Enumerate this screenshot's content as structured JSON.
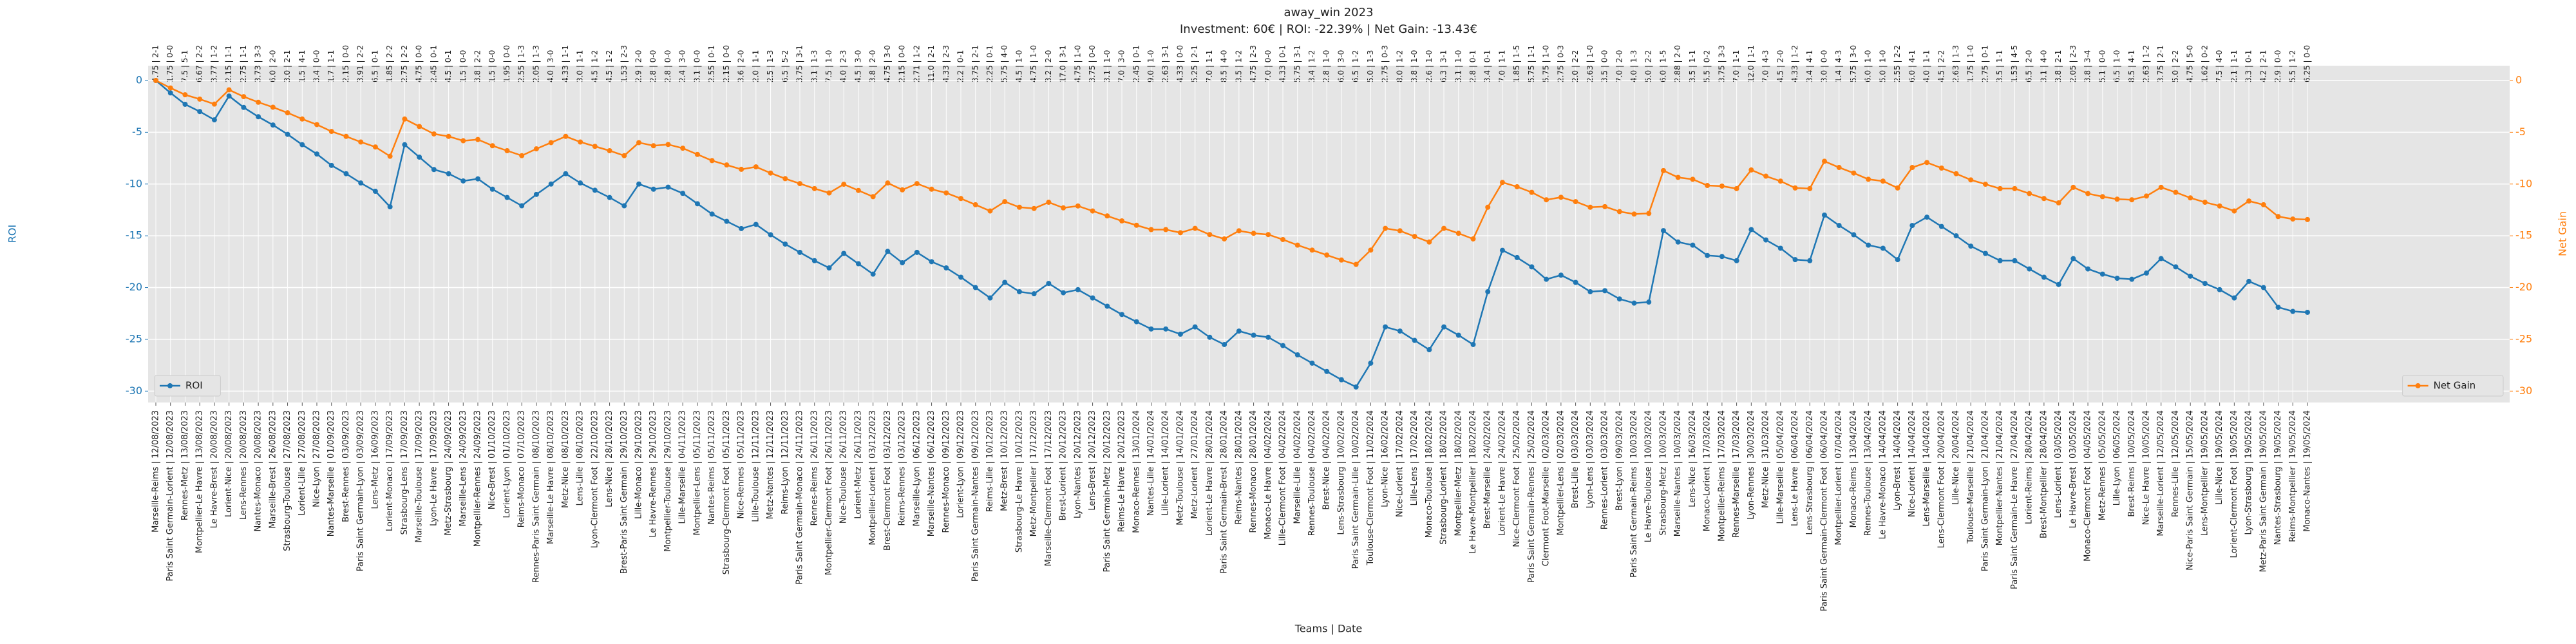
{
  "chart_data": {
    "type": "line",
    "title": "away_win 2023",
    "subtitle": "Investment: 60€ | ROI: -22.39% | Net Gain: -13.43€",
    "xlabel": "Teams | Date",
    "ylabel": "ROI",
    "y2label": "Net Gain",
    "ylim": [
      -31.1,
      1.43
    ],
    "yticks": [
      0,
      -5,
      -10,
      -15,
      -20,
      -25,
      -30
    ],
    "y2lim": [
      -31.1,
      1.43
    ],
    "y2ticks": [
      0,
      -5,
      -10,
      -15,
      -20,
      -25,
      -30
    ],
    "grid": true,
    "categories": [
      "Marseille-Reims | 12/08/2023",
      "Paris Saint Germain-Lorient | 12/08/2023",
      "Rennes-Metz | 13/08/2023",
      "Montpellier-Le Havre | 13/08/2023",
      "Le Havre-Brest | 20/08/2023",
      "Lorient-Nice | 20/08/2023",
      "Lens-Rennes | 20/08/2023",
      "Nantes-Monaco | 20/08/2023",
      "Marseille-Brest | 26/08/2023",
      "Strasbourg-Toulouse | 27/08/2023",
      "Lorient-Lille | 27/08/2023",
      "Nice-Lyon | 27/08/2023",
      "Nantes-Marseille | 01/09/2023",
      "Brest-Rennes | 03/09/2023",
      "Paris Saint Germain-Lyon | 03/09/2023",
      "Lens-Metz | 16/09/2023",
      "Lorient-Monaco | 17/09/2023",
      "Strasbourg-Lens | 17/09/2023",
      "Marseille-Toulouse | 17/09/2023",
      "Lyon-Le Havre | 17/09/2023",
      "Metz-Strasbourg | 24/09/2023",
      "Marseille-Lens | 24/09/2023",
      "Montpellier-Rennes | 24/09/2023",
      "Nice-Brest | 01/10/2023",
      "Lorient-Lyon | 01/10/2023",
      "Reims-Monaco | 07/10/2023",
      "Rennes-Paris Saint Germain | 08/10/2023",
      "Marseille-Le Havre | 08/10/2023",
      "Metz-Nice | 08/10/2023",
      "Lens-Lille | 08/10/2023",
      "Lyon-Clermont Foot | 22/10/2023",
      "Lens-Nice | 28/10/2023",
      "Brest-Paris Saint Germain | 29/10/2023",
      "Lille-Monaco | 29/10/2023",
      "Le Havre-Rennes | 29/10/2023",
      "Montpellier-Toulouse | 29/10/2023",
      "Lille-Marseille | 04/11/2023",
      "Montpellier-Lens | 05/11/2023",
      "Nantes-Reims | 05/11/2023",
      "Strasbourg-Clermont Foot | 05/11/2023",
      "Nice-Rennes | 05/11/2023",
      "Lille-Toulouse | 12/11/2023",
      "Metz-Nantes | 12/11/2023",
      "Reims-Lyon | 12/11/2023",
      "Paris Saint Germain-Monaco | 24/11/2023",
      "Rennes-Reims | 26/11/2023",
      "Montpellier-Clermont Foot | 26/11/2023",
      "Nice-Toulouse | 26/11/2023",
      "Lorient-Metz | 26/11/2023",
      "Montpellier-Lorient | 03/12/2023",
      "Brest-Clermont Foot | 03/12/2023",
      "Reims-Rennes | 03/12/2023",
      "Marseille-Lyon | 06/12/2023",
      "Marseille-Nantes | 06/12/2023",
      "Rennes-Monaco | 09/12/2023",
      "Lorient-Lyon | 09/12/2023",
      "Paris Saint Germain-Nantes | 09/12/2023",
      "Reims-Lille | 10/12/2023",
      "Metz-Brest | 10/12/2023",
      "Strasbourg-Le Havre | 10/12/2023",
      "Metz-Montpellier | 17/12/2023",
      "Marseille-Clermont Foot | 17/12/2023",
      "Brest-Lorient | 20/12/2023",
      "Lyon-Nantes | 20/12/2023",
      "Lens-Brest | 20/12/2023",
      "Paris Saint Germain-Metz | 20/12/2023",
      "Reims-Le Havre | 20/12/2023",
      "Monaco-Rennes | 13/01/2024",
      "Nantes-Lille | 14/01/2024",
      "Lille-Lorient | 14/01/2024",
      "Metz-Toulouse | 14/01/2024",
      "Metz-Lorient | 27/01/2024",
      "Lorient-Le Havre | 28/01/2024",
      "Paris Saint Germain-Brest | 28/01/2024",
      "Reims-Nantes | 28/01/2024",
      "Rennes-Monaco | 28/01/2024",
      "Monaco-Le Havre | 04/02/2024",
      "Lille-Clermont Foot | 04/02/2024",
      "Marseille-Lille | 04/02/2024",
      "Rennes-Toulouse | 04/02/2024",
      "Brest-Nice | 04/02/2024",
      "Lens-Strasbourg | 10/02/2024",
      "Paris Saint Germain-Lille | 10/02/2024",
      "Toulouse-Clermont Foot | 11/02/2024",
      "Lyon-Nice | 16/02/2024",
      "Nice-Lorient | 17/02/2024",
      "Lille-Lens | 17/02/2024",
      "Monaco-Toulouse | 18/02/2024",
      "Strasbourg-Lorient | 18/02/2024",
      "Montpellier-Metz | 18/02/2024",
      "Le Havre-Montpellier | 18/02/2024",
      "Brest-Marseille | 24/02/2024",
      "Lorient-Le Havre | 24/02/2024",
      "Nice-Clermont Foot | 25/02/2024",
      "Paris Saint Germain-Rennes | 25/02/2024",
      "Clermont Foot-Marseille | 02/03/2024",
      "Montpellier-Lens | 02/03/2024",
      "Brest-Lille | 03/03/2024",
      "Lyon-Lens | 03/03/2024",
      "Rennes-Lorient | 03/03/2024",
      "Brest-Lyon | 09/03/2024",
      "Paris Saint Germain-Reims | 10/03/2024",
      "Le Havre-Toulouse | 10/03/2024",
      "Strasbourg-Metz | 10/03/2024",
      "Marseille-Nantes | 10/03/2024",
      "Lens-Nice | 16/03/2024",
      "Monaco-Lorient | 17/03/2024",
      "Montpellier-Reims | 17/03/2024",
      "Rennes-Marseille | 17/03/2024",
      "Lyon-Rennes | 30/03/2024",
      "Metz-Nice | 31/03/2024",
      "Lille-Marseille | 05/04/2024",
      "Lens-Le Havre | 06/04/2024",
      "Lens-Strasbourg | 06/04/2024",
      "Paris Saint Germain-Clermont Foot | 06/04/2024",
      "Montpellier-Lorient | 07/04/2024",
      "Monaco-Reims | 13/04/2024",
      "Rennes-Toulouse | 13/04/2024",
      "Le Havre-Monaco | 14/04/2024",
      "Lyon-Brest | 14/04/2024",
      "Nice-Lorient | 14/04/2024",
      "Lens-Marseille | 14/04/2024",
      "Lens-Clermont Foot | 20/04/2024",
      "Lille-Nice | 20/04/2024",
      "Toulouse-Marseille | 21/04/2024",
      "Paris Saint Germain-Lyon | 21/04/2024",
      "Montpellier-Nantes | 21/04/2024",
      "Paris Saint Germain-Le Havre | 27/04/2024",
      "Lorient-Reims | 28/04/2024",
      "Brest-Montpellier | 28/04/2024",
      "Lens-Lorient | 03/05/2024",
      "Le Havre-Brest | 03/05/2024",
      "Monaco-Clermont Foot | 04/05/2024",
      "Metz-Rennes | 05/05/2024",
      "Lille-Lyon | 06/05/2024",
      "Brest-Reims | 10/05/2024",
      "Nice-Le Havre | 10/05/2024",
      "Marseille-Lorient | 12/05/2024",
      "Rennes-Lille | 12/05/2024",
      "Nice-Paris Saint Germain | 15/05/2024",
      "Lens-Montpellier | 19/05/2024",
      "Lille-Nice | 19/05/2024",
      "Lorient-Clermont Foot | 19/05/2024",
      "Lyon-Strasbourg | 19/05/2024",
      "Metz-Paris Saint Germain | 19/05/2024",
      "Nantes-Strasbourg | 19/05/2024",
      "Reims-Montpellier | 19/05/2024",
      "Monaco-Nantes | 19/05/2024"
    ],
    "odds_scores": [
      "4.75 | 2-1",
      "1.75 | 0-0",
      "7.5 | 5-1",
      "6.67 | 2-2",
      "3.77 | 1-2",
      "2.15 | 1-1",
      "2.75 | 1-1",
      "3.73 | 3-3",
      "6.0 | 2-0",
      "3.0 | 2-1",
      "1.5 | 4-1",
      "3.4 | 0-0",
      "1.7 | 1-1",
      "2.15 | 0-0",
      "3.91 | 2-2",
      "6.5 | 0-1",
      "1.85 | 2-2",
      "2.75 | 2-2",
      "4.75 | 0-0",
      "2.45 | 0-1",
      "4.5 | 0-1",
      "1.5 | 0-0",
      "3.8 | 2-2",
      "1.5 | 0-0",
      "1.95 | 0-0",
      "2.55 | 1-3",
      "2.05 | 1-3",
      "4.0 | 3-0",
      "4.33 | 1-1",
      "3.0 | 1-1",
      "4.5 | 1-2",
      "4.5 | 1-2",
      "1.53 | 2-3",
      "2.9 | 2-0",
      "2.8 | 0-0",
      "2.8 | 0-0",
      "2.4 | 3-0",
      "3.1 | 0-0",
      "2.55 | 0-1",
      "2.15 | 0-0",
      "3.6 | 2-0",
      "2.0 | 1-1",
      "2.5 | 1-3",
      "6.5 | 5-2",
      "3.75 | 3-1",
      "3.1 | 1-3",
      "7.5 | 1-0",
      "4.0 | 2-3",
      "4.5 | 3-0",
      "3.8 | 2-0",
      "4.75 | 3-0",
      "2.15 | 0-0",
      "2.71 | 1-2",
      "11.0 | 2-1",
      "4.33 | 2-3",
      "2.2 | 0-1",
      "3.75 | 2-1",
      "2.25 | 0-1",
      "5.75 | 4-0",
      "4.5 | 1-0",
      "4.75 | 1-0",
      "3.2 | 2-0",
      "17.0 | 3-1",
      "4.75 | 1-0",
      "3.75 | 0-0",
      "3.1 | 1-0",
      "7.0 | 3-0",
      "2.45 | 0-1",
      "9.0 | 1-0",
      "2.63 | 3-1",
      "4.33 | 0-0",
      "5.25 | 2-1",
      "7.0 | 1-1",
      "8.5 | 4-0",
      "3.5 | 1-2",
      "4.75 | 2-3",
      "7.0 | 0-0",
      "4.33 | 0-1",
      "5.75 | 3-1",
      "3.4 | 1-2",
      "2.8 | 1-0",
      "6.0 | 3-0",
      "6.5 | 1-2",
      "5.0 | 1-3",
      "2.75 | 0-3",
      "8.0 | 1-2",
      "3.8 | 1-0",
      "2.6 | 1-0",
      "6.3 | 3-1",
      "3.1 | 1-0",
      "2.8 | 0-1",
      "3.4 | 0-1",
      "7.0 | 1-1",
      "1.85 | 1-5",
      "5.75 | 1-1",
      "5.75 | 1-0",
      "2.75 | 0-3",
      "2.0 | 2-2",
      "2.63 | 1-0",
      "3.5 | 0-0",
      "7.0 | 2-0",
      "4.0 | 1-3",
      "5.0 | 2-2",
      "6.0 | 1-5",
      "2.88 | 2-0",
      "3.5 | 1-1",
      "5.5 | 0-2",
      "3.75 | 3-3",
      "7.0 | 1-1",
      "12.0 | 1-1",
      "7.0 | 4-3",
      "4.5 | 2-0",
      "4.33 | 1-2",
      "3.4 | 4-1",
      "3.0 | 0-0",
      "1.4 | 4-3",
      "5.75 | 3-0",
      "6.0 | 1-0",
      "5.0 | 1-0",
      "2.55 | 2-2",
      "6.0 | 4-1",
      "4.0 | 1-1",
      "4.5 | 2-2",
      "2.63 | 1-3",
      "1.75 | 1-0",
      "2.75 | 0-1",
      "3.5 | 1-1",
      "1.53 | 4-5",
      "6.5 | 2-0",
      "3.1 | 4-0",
      "3.8 | 2-1",
      "2.05 | 2-3",
      "3.8 | 3-4",
      "5.1 | 0-0",
      "6.5 | 1-0",
      "8.5 | 4-1",
      "2.63 | 1-2",
      "3.75 | 2-1",
      "5.0 | 2-2",
      "4.75 | 5-0",
      "1.62 | 0-2",
      "7.5 | 4-0",
      "2.1 | 1-1",
      "3.3 | 0-1",
      "4.2 | 2-1",
      "2.9 | 0-0",
      "5.5 | 1-2",
      "6.25 | 0-0"
    ],
    "series": [
      {
        "name": "ROI",
        "color": "#1f77b4",
        "axis": "y",
        "legend": "lower left",
        "values": [
          0,
          -1.2,
          -2.3,
          -3.0,
          -3.8,
          -1.5,
          -2.6,
          -3.5,
          -4.3,
          -5.2,
          -6.2,
          -7.1,
          -8.2,
          -9.0,
          -9.9,
          -10.7,
          -12.2,
          -6.2,
          -7.4,
          -8.6,
          -9.0,
          -9.7,
          -9.5,
          -10.5,
          -11.3,
          -12.1,
          -11.0,
          -10.0,
          -9.0,
          -9.9,
          -10.6,
          -11.3,
          -12.1,
          -10.0,
          -10.5,
          -10.3,
          -10.9,
          -11.9,
          -12.9,
          -13.6,
          -14.3,
          -13.9,
          -14.9,
          -15.8,
          -16.6,
          -17.4,
          -18.1,
          -16.7,
          -17.7,
          -18.7,
          -16.5,
          -17.6,
          -16.6,
          -17.5,
          -18.1,
          -19.0,
          -20.0,
          -21.0,
          -19.5,
          -20.4,
          -20.6,
          -19.6,
          -20.5,
          -20.2,
          -21.0,
          -21.8,
          -22.6,
          -23.3,
          -24.0,
          -24.0,
          -24.5,
          -23.8,
          -24.8,
          -25.5,
          -24.2,
          -24.6,
          -24.8,
          -25.6,
          -26.5,
          -27.3,
          -28.1,
          -28.9,
          -29.6,
          -27.3,
          -23.8,
          -24.2,
          -25.1,
          -26.0,
          -23.8,
          -24.6,
          -25.5,
          -20.4,
          -16.4,
          -17.1,
          -18.0,
          -19.2,
          -18.8,
          -19.5,
          -20.4,
          -20.3,
          -21.1,
          -21.5,
          -21.4,
          -14.5,
          -15.6,
          -15.9,
          -16.9,
          -17.0,
          -17.4,
          -14.4,
          -15.4,
          -16.2,
          -17.3,
          -17.4,
          -13.0,
          -14.0,
          -14.9,
          -15.9,
          -16.2,
          -17.3,
          -14.0,
          -13.2,
          -14.1,
          -15.0,
          -16.0,
          -16.7,
          -17.4,
          -17.4,
          -18.2,
          -19.0,
          -19.7,
          -17.2,
          -18.2,
          -18.7,
          -19.1,
          -19.2,
          -18.6,
          -17.2,
          -18.0,
          -18.9,
          -19.6,
          -20.2,
          -21.0,
          -19.4,
          -20.0,
          -21.9,
          -22.3,
          -22.39
        ]
      },
      {
        "name": "Net Gain",
        "color": "#ff7f0e",
        "axis": "y2",
        "legend": "lower right",
        "values": [
          0,
          -0.72,
          -1.38,
          -1.8,
          -2.28,
          -0.9,
          -1.56,
          -2.1,
          -2.58,
          -3.12,
          -3.72,
          -4.26,
          -4.92,
          -5.4,
          -5.94,
          -6.42,
          -7.32,
          -3.72,
          -4.44,
          -5.16,
          -5.4,
          -5.82,
          -5.7,
          -6.3,
          -6.78,
          -7.26,
          -6.6,
          -6.0,
          -5.4,
          -5.94,
          -6.36,
          -6.78,
          -7.26,
          -6.0,
          -6.3,
          -6.18,
          -6.54,
          -7.14,
          -7.74,
          -8.16,
          -8.58,
          -8.34,
          -8.94,
          -9.48,
          -9.96,
          -10.44,
          -10.86,
          -10.02,
          -10.62,
          -11.22,
          -9.9,
          -10.56,
          -9.96,
          -10.5,
          -10.86,
          -11.4,
          -12.0,
          -12.6,
          -11.7,
          -12.24,
          -12.36,
          -11.76,
          -12.3,
          -12.12,
          -12.6,
          -13.08,
          -13.56,
          -13.98,
          -14.4,
          -14.4,
          -14.7,
          -14.28,
          -14.88,
          -15.3,
          -14.52,
          -14.76,
          -14.88,
          -15.36,
          -15.9,
          -16.38,
          -16.86,
          -17.34,
          -17.76,
          -16.38,
          -14.28,
          -14.52,
          -15.06,
          -15.6,
          -14.28,
          -14.76,
          -15.3,
          -12.24,
          -9.84,
          -10.26,
          -10.8,
          -11.52,
          -11.28,
          -11.7,
          -12.24,
          -12.18,
          -12.66,
          -12.9,
          -12.84,
          -8.7,
          -9.36,
          -9.54,
          -10.14,
          -10.2,
          -10.44,
          -8.64,
          -9.24,
          -9.72,
          -10.38,
          -10.44,
          -7.8,
          -8.4,
          -8.94,
          -9.54,
          -9.72,
          -10.38,
          -8.4,
          -7.92,
          -8.46,
          -9.0,
          -9.6,
          -10.02,
          -10.44,
          -10.44,
          -10.92,
          -11.4,
          -11.82,
          -10.32,
          -10.92,
          -11.22,
          -11.46,
          -11.52,
          -11.16,
          -10.32,
          -10.8,
          -11.34,
          -11.76,
          -12.12,
          -12.6,
          -11.64,
          -12.0,
          -13.14,
          -13.38,
          -13.43
        ]
      }
    ]
  }
}
